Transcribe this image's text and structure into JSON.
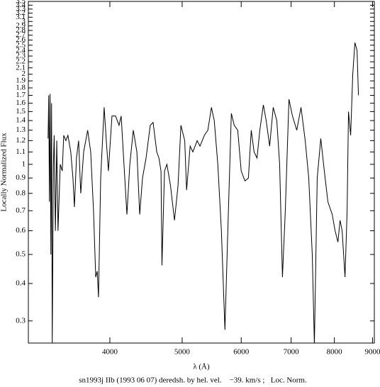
{
  "chart_data": {
    "type": "line",
    "x_label": "λ (Å)",
    "y_label": "Locally Normalized Flux",
    "caption": "sn1993j IIb (1993 06 07) deredsh. by hel. vel.    −39. km/s ;   Loc. Norm.",
    "x_log": true,
    "y_log": true,
    "color": "#000000",
    "xlim": [
      3110,
      9050
    ],
    "ylim": [
      0.253,
      3.5
    ],
    "xticks": [
      4000,
      5000,
      6000,
      7000,
      8000,
      9000
    ],
    "yticks": [
      0.3,
      0.4,
      0.5,
      0.6,
      0.7,
      0.8,
      0.9,
      1,
      1.1,
      1.2,
      1.3,
      1.4,
      1.5,
      1.6,
      1.7,
      1.8,
      1.9,
      2,
      2.1,
      2.2,
      2.3,
      2.4,
      2.5,
      2.6,
      2.7,
      2.8,
      2.9,
      3,
      3.1,
      3.2,
      3.3,
      3.4,
      3.5
    ],
    "x": [
      3305,
      3312,
      3319,
      3326,
      3334,
      3341,
      3348,
      3360,
      3368,
      3381,
      3395,
      3408,
      3432,
      3453,
      3469,
      3492,
      3514,
      3545,
      3569,
      3585,
      3608,
      3632,
      3656,
      3689,
      3735,
      3770,
      3803,
      3829,
      3847,
      3862,
      3888,
      3930,
      3956,
      3982,
      4026,
      4071,
      4115,
      4142,
      4178,
      4216,
      4254,
      4300,
      4348,
      4386,
      4424,
      4473,
      4531,
      4571,
      4623,
      4654,
      4684,
      4698,
      4735,
      4770,
      4823,
      4883,
      4937,
      4981,
      5040,
      5069,
      5125,
      5168,
      5237,
      5283,
      5355,
      5413,
      5473,
      5521,
      5582,
      5644,
      5706,
      5757,
      5820,
      5872,
      5936,
      6000,
      6070,
      6135,
      6189,
      6243,
      6300,
      6355,
      6425,
      6481,
      6551,
      6623,
      6697,
      6756,
      6815,
      6875,
      6953,
      7029,
      7123,
      7217,
      7311,
      7391,
      7472,
      7521,
      7587,
      7671,
      7755,
      7841,
      7947,
      8017,
      8088,
      8141,
      8194,
      8267,
      8321,
      8356,
      8412,
      8467,
      8523,
      8580,
      8617
    ],
    "series": [
      {
        "values": [
          1.22,
          1.7,
          0.75,
          1.72,
          0.5,
          1.6,
          0.25,
          1.0,
          1.25,
          0.6,
          1.2,
          0.6,
          1.0,
          0.95,
          1.25,
          1.2,
          1.25,
          1.1,
          0.9,
          0.72,
          1.05,
          1.2,
          0.8,
          1.1,
          1.3,
          1.1,
          0.7,
          0.42,
          0.44,
          0.36,
          0.9,
          1.55,
          1.2,
          0.95,
          1.45,
          1.45,
          1.35,
          1.45,
          1.0,
          0.68,
          1.0,
          1.3,
          1.1,
          0.68,
          0.9,
          1.05,
          1.35,
          1.38,
          1.1,
          1.05,
          0.95,
          0.46,
          0.95,
          1.0,
          0.85,
          0.65,
          0.85,
          1.35,
          1.2,
          0.82,
          1.15,
          1.1,
          1.2,
          1.15,
          1.25,
          1.3,
          1.55,
          1.4,
          1.0,
          0.6,
          0.28,
          0.6,
          1.48,
          1.35,
          1.3,
          0.95,
          0.88,
          0.9,
          1.3,
          1.1,
          1.05,
          1.3,
          1.58,
          1.4,
          1.15,
          1.55,
          1.4,
          1.0,
          0.42,
          0.7,
          1.65,
          1.45,
          1.3,
          1.55,
          1.2,
          0.9,
          0.5,
          0.25,
          0.9,
          1.22,
          0.95,
          0.75,
          0.68,
          0.6,
          0.55,
          0.65,
          0.6,
          0.42,
          0.7,
          1.5,
          1.25,
          2.0,
          2.55,
          2.4,
          1.7
        ]
      }
    ]
  }
}
